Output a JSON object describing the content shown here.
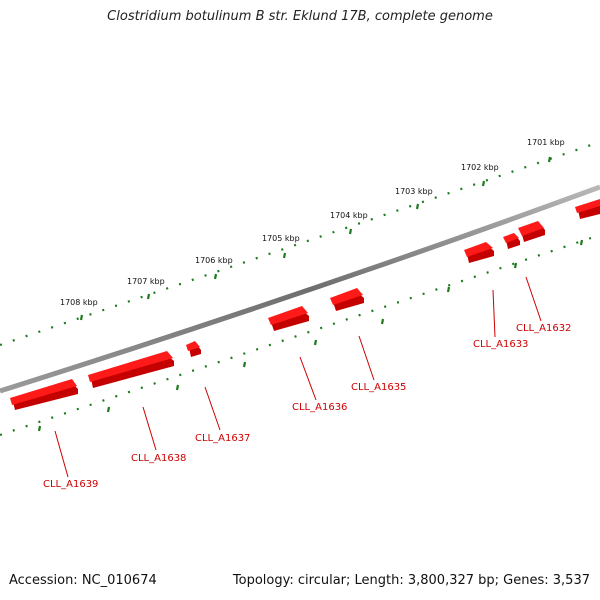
{
  "title": "Clostridium botulinum B str. Eklund 17B, complete genome",
  "footer": {
    "accession": "Accession: NC_010674",
    "summary": "Topology: circular; Length: 3,800,327 bp; Genes: 3,537"
  },
  "colors": {
    "backbone": "#8a8a8a",
    "gene": "#ee0000",
    "gene_label": "#cc0000",
    "tick": "#1f7a1f"
  },
  "kbp_labels": [
    "1701 kbp",
    "1702 kbp",
    "1703 kbp",
    "1704 kbp",
    "1705 kbp",
    "1706 kbp",
    "1707 kbp",
    "1708 kbp"
  ],
  "genes": [
    "CLL_A1632",
    "CLL_A1633",
    "CLL_A1635",
    "CLL_A1636",
    "CLL_A1637",
    "CLL_A1638",
    "CLL_A1639"
  ]
}
